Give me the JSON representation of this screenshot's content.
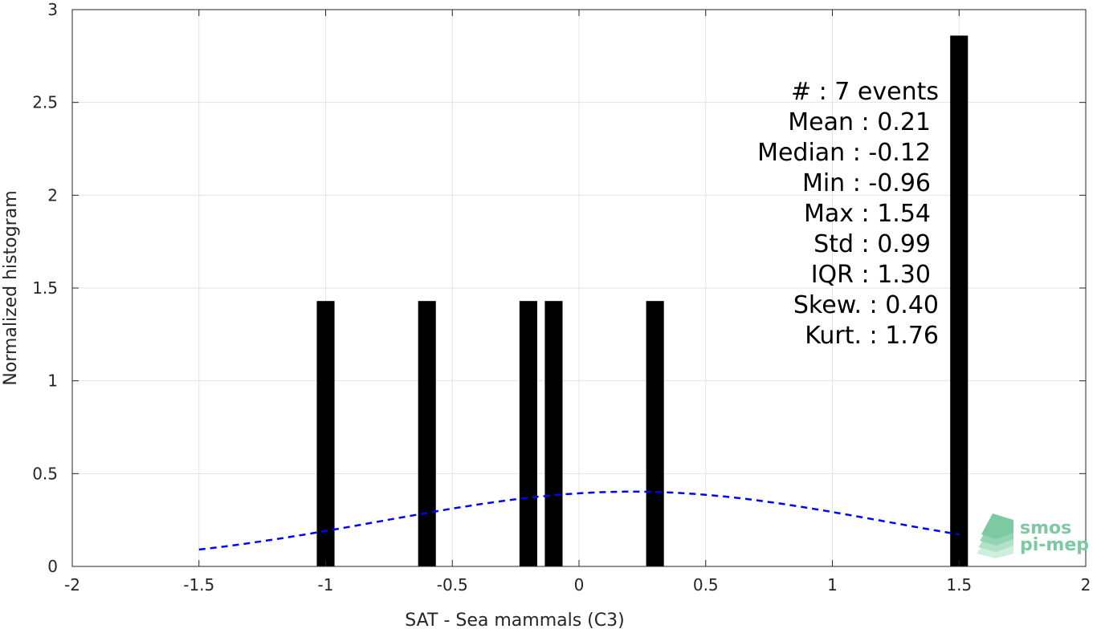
{
  "chart_data": {
    "type": "bar",
    "xlabel": "SAT - Sea mammals (C3)",
    "ylabel": "Normalized histogram",
    "xlim": [
      -2,
      2
    ],
    "ylim": [
      0,
      3
    ],
    "grid": true,
    "x_ticks": [
      -2,
      -1.5,
      -1,
      -0.5,
      0,
      0.5,
      1,
      1.5,
      2
    ],
    "x_tick_labels": [
      "-2",
      "-1.5",
      "-1",
      "-0.5",
      "0",
      "0.5",
      "1",
      "1.5",
      "2"
    ],
    "y_ticks": [
      0,
      0.5,
      1,
      1.5,
      2,
      2.5,
      3
    ],
    "y_tick_labels": [
      "0",
      "0.5",
      "1",
      "1.5",
      "2",
      "2.5",
      "3"
    ],
    "bin_width": 0.07,
    "bars": [
      {
        "x": -1.0,
        "value": 1.43
      },
      {
        "x": -0.6,
        "value": 1.43
      },
      {
        "x": -0.2,
        "value": 1.43
      },
      {
        "x": -0.1,
        "value": 1.43
      },
      {
        "x": 0.3,
        "value": 1.43
      },
      {
        "x": 1.5,
        "value": 2.86
      }
    ],
    "fit_curve": {
      "style": "dashed",
      "color": "#0000ff",
      "x_range": [
        -1.5,
        1.5
      ],
      "mean": 0.21,
      "std": 0.99
    },
    "bar_color": "#000000"
  },
  "stats": [
    "#  : 7 events",
    "Mean : 0.21",
    "Median : -0.12",
    "Min : -0.96",
    "Max : 1.54",
    "Std : 0.99",
    "IQR : 1.30",
    "Skew. : 0.40",
    "Kurt. : 1.76"
  ],
  "logo": {
    "line1": "smos",
    "line2": "pi-mep",
    "color": "#7cc9a2"
  }
}
